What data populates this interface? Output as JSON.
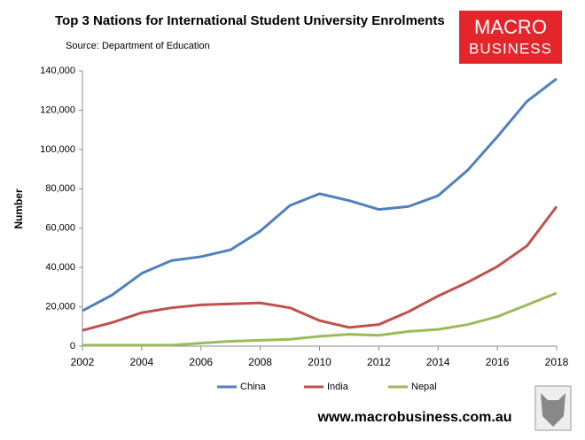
{
  "chart_data": {
    "type": "line",
    "title": "Top 3 Nations for International Student University Enrolments",
    "subtitle": "Source: Department of Education",
    "y_label": "Number",
    "x": [
      2002,
      2003,
      2004,
      2005,
      2006,
      2007,
      2008,
      2009,
      2010,
      2011,
      2012,
      2013,
      2014,
      2015,
      2016,
      2017,
      2018
    ],
    "series": [
      {
        "name": "China",
        "color": "#4f81bd",
        "values": [
          18000,
          26000,
          37000,
          43500,
          45500,
          49000,
          58500,
          71500,
          77500,
          74000,
          69500,
          71000,
          76500,
          89500,
          106500,
          124500,
          136000
        ]
      },
      {
        "name": "India",
        "color": "#c0504d",
        "values": [
          8000,
          12000,
          17000,
          19500,
          21000,
          21500,
          22000,
          19500,
          13000,
          9500,
          11000,
          17500,
          25500,
          32500,
          40500,
          51000,
          71000
        ]
      },
      {
        "name": "Nepal",
        "color": "#9bbb59",
        "values": [
          500,
          500,
          500,
          500,
          1500,
          2500,
          3000,
          3500,
          5000,
          6000,
          5500,
          7500,
          8500,
          11000,
          15000,
          21000,
          27000
        ]
      }
    ],
    "xlim": [
      2002,
      2018
    ],
    "xticks": [
      2002,
      2004,
      2006,
      2008,
      2010,
      2012,
      2014,
      2016,
      2018
    ],
    "ylim": [
      0,
      140000
    ],
    "yticks": [
      0,
      {
        "value": 20000,
        "label": "20,000"
      },
      {
        "value": 40000,
        "label": "40,000"
      },
      {
        "value": 60000,
        "label": "60,000"
      },
      {
        "value": 80000,
        "label": "80,000"
      },
      {
        "value": 100000,
        "label": "100,000"
      },
      {
        "value": 120000,
        "label": "120,000"
      },
      {
        "value": 140000,
        "label": "140,000"
      }
    ],
    "grid": false,
    "legend": "bottom"
  },
  "logo": {
    "line1": "MACRO",
    "line2": "BUSINESS"
  },
  "footer": "www.macrobusiness.com.au"
}
